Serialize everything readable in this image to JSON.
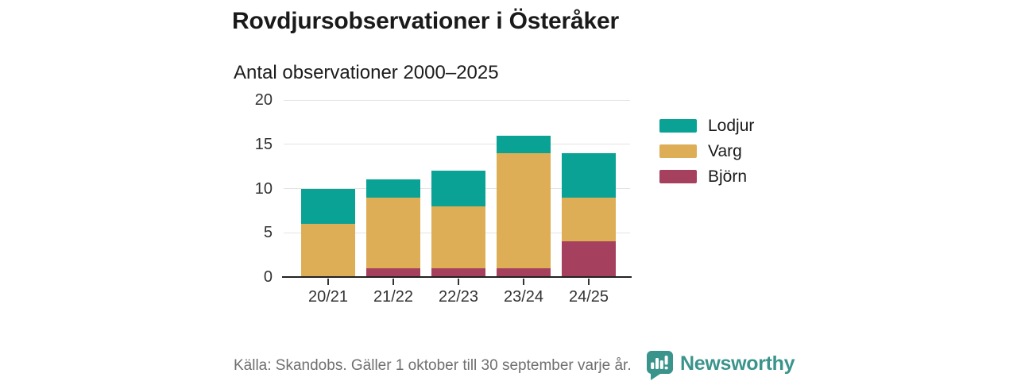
{
  "header": {
    "title": "Rovdjursobservationer i Österåker",
    "subtitle": "Antal observationer 2000–2025"
  },
  "chart_data": {
    "type": "bar",
    "stacked": true,
    "title": "Rovdjursobservationer i Österåker",
    "subtitle": "Antal observationer 2000–2025",
    "categories": [
      "20/21",
      "21/22",
      "22/23",
      "23/24",
      "24/25"
    ],
    "series": [
      {
        "name": "Björn",
        "color": "#a6405f",
        "values": [
          0,
          1,
          1,
          1,
          4
        ]
      },
      {
        "name": "Varg",
        "color": "#ddae55",
        "values": [
          6,
          8,
          7,
          13,
          5
        ]
      },
      {
        "name": "Lodjur",
        "color": "#09a295",
        "values": [
          4,
          2,
          4,
          2,
          5
        ]
      }
    ],
    "totals": [
      10,
      11,
      12,
      16,
      14
    ],
    "ylim": [
      0,
      20
    ],
    "yticks": [
      0,
      5,
      10,
      15,
      20
    ],
    "grid": true,
    "legend_position": "right",
    "legend_order": [
      "Lodjur",
      "Varg",
      "Björn"
    ]
  },
  "footer": {
    "source": "Källa: Skandobs. Gäller 1 oktober till 30 september varje år.",
    "brand": "Newsworthy",
    "brand_color": "#3a948b",
    "logo_icon": "bar-chart-speech-bubble"
  },
  "colors": {
    "background": "#ffffff",
    "text": "#1a1a1a",
    "axis_text": "#333333",
    "gridline": "#e4e4e4",
    "baseline": "#222222",
    "source_text": "#6f6f6f"
  }
}
